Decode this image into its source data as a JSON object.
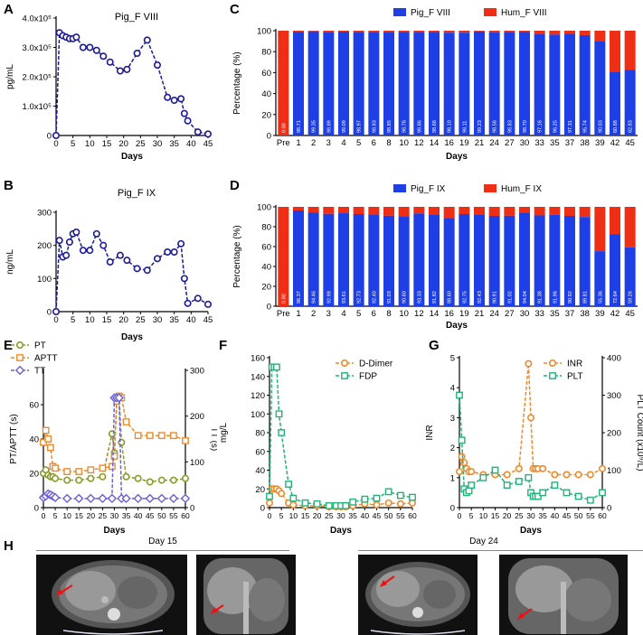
{
  "colors": {
    "blue": "#1f3fe6",
    "red": "#ef2e16",
    "navy": "#1a1a9a",
    "olive": "#8a9a2a",
    "orange": "#ee8a2a",
    "teal": "#22b27a",
    "purple": "#6a5fd6",
    "arrow": "#e11"
  },
  "chart_data": [
    {
      "id": "A",
      "panel_label": "A",
      "type": "line",
      "title": "Pig_F VIII",
      "xlabel": "Days",
      "ylabel": "pg/mL",
      "xlim": [
        0,
        45
      ],
      "ylim": [
        0,
        400000
      ],
      "xticks": [
        0,
        5,
        10,
        15,
        20,
        25,
        30,
        35,
        40,
        45
      ],
      "yticks": [
        {
          "v": 0,
          "t": "0"
        },
        {
          "v": 100000,
          "t": "1.0x10⁵"
        },
        {
          "v": 200000,
          "t": "2.0x10⁵"
        },
        {
          "v": 300000,
          "t": "3.0x10⁵"
        },
        {
          "v": 400000,
          "t": "4.0x10⁵"
        }
      ],
      "series": [
        {
          "name": "Pig_F VIII",
          "color": "#1a1a9a",
          "marker": "circle",
          "x": [
            0,
            1,
            2,
            3,
            4,
            5,
            6,
            8,
            10,
            12,
            14,
            16,
            19,
            21,
            24,
            27,
            30,
            33,
            35,
            37,
            38,
            39,
            42,
            45
          ],
          "y": [
            0,
            350000,
            340000,
            335000,
            330000,
            330000,
            335000,
            300000,
            300000,
            290000,
            270000,
            250000,
            220000,
            225000,
            280000,
            325000,
            240000,
            130000,
            120000,
            125000,
            75000,
            50000,
            12000,
            5000
          ]
        }
      ]
    },
    {
      "id": "B",
      "panel_label": "B",
      "type": "line",
      "title": "Pig_F IX",
      "xlabel": "Days",
      "ylabel": "ng/mL",
      "xlim": [
        0,
        45
      ],
      "ylim": [
        0,
        300
      ],
      "xticks": [
        0,
        5,
        10,
        15,
        20,
        25,
        30,
        35,
        40,
        45
      ],
      "yticks": [
        {
          "v": 0,
          "t": "0"
        },
        {
          "v": 100,
          "t": "100"
        },
        {
          "v": 200,
          "t": "200"
        },
        {
          "v": 300,
          "t": "300"
        }
      ],
      "series": [
        {
          "name": "Pig_F IX",
          "color": "#1a1a9a",
          "marker": "circle",
          "x": [
            0,
            1,
            2,
            3,
            4,
            5,
            6,
            8,
            10,
            12,
            14,
            16,
            19,
            21,
            24,
            27,
            30,
            33,
            35,
            37,
            38,
            39,
            42,
            45
          ],
          "y": [
            0,
            215,
            165,
            170,
            210,
            235,
            240,
            185,
            185,
            235,
            200,
            150,
            170,
            155,
            130,
            125,
            160,
            180,
            180,
            205,
            100,
            25,
            40,
            22
          ]
        }
      ]
    },
    {
      "id": "C",
      "panel_label": "C",
      "type": "bar",
      "title": "",
      "xlabel": "Days",
      "ylabel": "Percentage (%)",
      "ylim": [
        0,
        100
      ],
      "yticks": [
        {
          "v": 0,
          "t": "0"
        },
        {
          "v": 20,
          "t": "20"
        },
        {
          "v": 40,
          "t": "40"
        },
        {
          "v": 60,
          "t": "60"
        },
        {
          "v": 80,
          "t": "80"
        },
        {
          "v": 100,
          "t": "100"
        }
      ],
      "legend": [
        "Pig_F VIII",
        "Hum_F VIII"
      ],
      "categories": [
        "Pre",
        "1",
        "2",
        "3",
        "4",
        "5",
        "6",
        "8",
        "10",
        "12",
        "14",
        "16",
        "19",
        "21",
        "24",
        "27",
        "30",
        "33",
        "35",
        "37",
        "38",
        "39",
        "42",
        "45"
      ],
      "values": [
        0,
        98.71,
        99.35,
        98.89,
        99.09,
        98.97,
        98.83,
        98.85,
        98.76,
        98.86,
        98.68,
        98.1,
        98.11,
        99.23,
        98.56,
        98.83,
        98.7,
        97.16,
        96.25,
        97.31,
        95.74,
        90.03,
        60.88,
        62.83
      ],
      "labels": [
        "0.00",
        "98.71",
        "99.35",
        "98.89",
        "99.09",
        "98.97",
        "98.83",
        "98.85",
        "98.76",
        "98.86",
        "98.68",
        "98.10",
        "98.11",
        "99.23",
        "98.56",
        "98.83",
        "98.70",
        "97.16",
        "96.25",
        "97.31",
        "95.74",
        "90.03",
        "60.88",
        "62.83"
      ]
    },
    {
      "id": "D",
      "panel_label": "D",
      "type": "bar",
      "title": "",
      "xlabel": "Days",
      "ylabel": "Percentage (%)",
      "ylim": [
        0,
        100
      ],
      "yticks": [
        {
          "v": 0,
          "t": "0"
        },
        {
          "v": 20,
          "t": "20"
        },
        {
          "v": 40,
          "t": "40"
        },
        {
          "v": 60,
          "t": "60"
        },
        {
          "v": 80,
          "t": "80"
        },
        {
          "v": 100,
          "t": "100"
        }
      ],
      "legend": [
        "Pig_F IX",
        "Hum_F IX"
      ],
      "categories": [
        "Pre",
        "1",
        "2",
        "3",
        "4",
        "5",
        "6",
        "8",
        "10",
        "12",
        "14",
        "16",
        "19",
        "21",
        "24",
        "27",
        "30",
        "33",
        "35",
        "37",
        "38",
        "39",
        "42",
        "45"
      ],
      "values": [
        0,
        96.37,
        94.46,
        92.98,
        93.61,
        92.73,
        92.4,
        91.03,
        90.6,
        93.33,
        91.82,
        88.6,
        92.75,
        92.43,
        90.91,
        91.02,
        94.04,
        91.38,
        91.96,
        90.92,
        89.81,
        55.36,
        72.64,
        59.26
      ],
      "labels": [
        "0.00",
        "96.37",
        "94.46",
        "92.98",
        "93.61",
        "92.73",
        "92.40",
        "91.03",
        "90.60",
        "93.33",
        "91.82",
        "88.60",
        "92.75",
        "92.43",
        "90.91",
        "91.02",
        "94.04",
        "91.38",
        "91.96",
        "90.92",
        "89.81",
        "55.36",
        "72.64",
        "59.26"
      ]
    },
    {
      "id": "E",
      "panel_label": "E",
      "type": "line",
      "title": "",
      "xlabel": "Days",
      "ylabel": "PT/APTT (s)",
      "ylabel_right": "TT (s)",
      "xlim": [
        0,
        60
      ],
      "ylim": [
        0,
        80
      ],
      "ylim_right": [
        0,
        300
      ],
      "xticks": [
        0,
        5,
        10,
        15,
        20,
        25,
        30,
        35,
        40,
        45,
        50,
        55,
        60
      ],
      "yticks": [
        {
          "v": 0,
          "t": "0"
        },
        {
          "v": 20,
          "t": "20"
        },
        {
          "v": 40,
          "t": "40"
        },
        {
          "v": 60,
          "t": "60"
        }
      ],
      "yticks_right": [
        {
          "v": 0,
          "t": "0"
        },
        {
          "v": 100,
          "t": "100"
        },
        {
          "v": 200,
          "t": "200"
        },
        {
          "v": 300,
          "t": "300"
        }
      ],
      "series": [
        {
          "name": "PT",
          "color": "#8a9a2a",
          "marker": "circle",
          "axis": "left",
          "x": [
            0,
            1,
            2,
            3,
            4,
            5,
            10,
            15,
            20,
            25,
            29,
            30,
            31,
            32,
            33,
            35,
            40,
            45,
            50,
            55,
            60
          ],
          "y": [
            20,
            22,
            19,
            18,
            18,
            17,
            16,
            16,
            17,
            18,
            43,
            32,
            64,
            64,
            38,
            18,
            17,
            15,
            16,
            16,
            17
          ]
        },
        {
          "name": "APTT",
          "color": "#ee8a2a",
          "marker": "square",
          "axis": "left",
          "x": [
            0,
            1,
            2,
            3,
            4,
            5,
            10,
            15,
            20,
            25,
            29,
            30,
            31,
            32,
            33,
            35,
            40,
            45,
            50,
            55,
            60
          ],
          "y": [
            38,
            45,
            40,
            35,
            24,
            23,
            21,
            21,
            22,
            23,
            24,
            30,
            62,
            65,
            64,
            50,
            42,
            42,
            42,
            42,
            39
          ]
        },
        {
          "name": "TT",
          "color": "#6a5fd6",
          "marker": "diamond",
          "axis": "right",
          "x": [
            0,
            1,
            2,
            3,
            4,
            5,
            10,
            15,
            20,
            25,
            29,
            30,
            31,
            32,
            33,
            35,
            40,
            45,
            50,
            55,
            60
          ],
          "y": [
            22,
            25,
            30,
            28,
            25,
            22,
            20,
            20,
            20,
            20,
            20,
            240,
            240,
            240,
            20,
            20,
            20,
            20,
            20,
            20,
            20
          ]
        }
      ]
    },
    {
      "id": "F",
      "panel_label": "F",
      "type": "line",
      "title": "",
      "xlabel": "Days",
      "ylabel": "mg/L",
      "xlim": [
        0,
        60
      ],
      "ylim": [
        0,
        160
      ],
      "xticks": [
        0,
        5,
        10,
        15,
        20,
        25,
        30,
        35,
        40,
        45,
        50,
        55,
        60
      ],
      "yticks": [
        {
          "v": 0,
          "t": "0"
        },
        {
          "v": 20,
          "t": "20"
        },
        {
          "v": 40,
          "t": "40"
        },
        {
          "v": 60,
          "t": "60"
        },
        {
          "v": 80,
          "t": "80"
        },
        {
          "v": 100,
          "t": "100"
        },
        {
          "v": 120,
          "t": "120"
        },
        {
          "v": 140,
          "t": "140"
        },
        {
          "v": 160,
          "t": "160"
        }
      ],
      "series": [
        {
          "name": "D-Dimer",
          "color": "#ee8a2a",
          "marker": "circle",
          "x": [
            0,
            1,
            2,
            3,
            4,
            5,
            8,
            10,
            15,
            20,
            25,
            28,
            30,
            32,
            35,
            40,
            45,
            50,
            55,
            60
          ],
          "y": [
            5,
            20,
            20,
            20,
            18,
            15,
            5,
            3,
            2,
            2,
            1,
            1,
            1,
            1,
            2,
            4,
            3,
            5,
            4,
            5
          ]
        },
        {
          "name": "FDP",
          "color": "#22b27a",
          "marker": "square",
          "x": [
            0,
            1,
            2,
            3,
            4,
            5,
            8,
            10,
            15,
            20,
            25,
            28,
            30,
            32,
            35,
            40,
            45,
            50,
            55,
            60
          ],
          "y": [
            12,
            150,
            150,
            150,
            100,
            80,
            25,
            10,
            5,
            4,
            2,
            2,
            2,
            2,
            6,
            9,
            10,
            17,
            13,
            11
          ]
        }
      ]
    },
    {
      "id": "G",
      "panel_label": "G",
      "type": "line",
      "title": "",
      "xlabel": "Days",
      "ylabel": "INR",
      "ylabel_right": "PLT Count (x10⁹/L)",
      "xlim": [
        0,
        60
      ],
      "ylim": [
        0,
        5
      ],
      "ylim_right": [
        0,
        400
      ],
      "xticks": [
        0,
        5,
        10,
        15,
        20,
        25,
        30,
        35,
        40,
        45,
        50,
        55,
        60
      ],
      "yticks": [
        {
          "v": 0,
          "t": "0"
        },
        {
          "v": 1,
          "t": "1"
        },
        {
          "v": 2,
          "t": "2"
        },
        {
          "v": 3,
          "t": "3"
        },
        {
          "v": 4,
          "t": "4"
        },
        {
          "v": 5,
          "t": "5"
        }
      ],
      "yticks_right": [
        {
          "v": 0,
          "t": "0"
        },
        {
          "v": 100,
          "t": "100"
        },
        {
          "v": 200,
          "t": "200"
        },
        {
          "v": 300,
          "t": "300"
        },
        {
          "v": 400,
          "t": "400"
        }
      ],
      "series": [
        {
          "name": "INR",
          "color": "#ee8a2a",
          "marker": "circle",
          "axis": "left",
          "x": [
            0,
            1,
            2,
            3,
            4,
            5,
            10,
            15,
            20,
            25,
            29,
            30,
            31,
            32,
            33,
            35,
            40,
            45,
            50,
            55,
            60
          ],
          "y": [
            1.2,
            1.7,
            1.5,
            1.3,
            1.2,
            1.2,
            1.1,
            1.1,
            1.1,
            1.3,
            4.8,
            3.0,
            1.3,
            1.3,
            1.3,
            1.3,
            1.1,
            1.1,
            1.1,
            1.1,
            1.3
          ]
        },
        {
          "name": "PLT",
          "color": "#22b27a",
          "marker": "square",
          "axis": "right",
          "x": [
            0,
            1,
            2,
            3,
            4,
            5,
            10,
            15,
            20,
            25,
            29,
            30,
            31,
            32,
            33,
            35,
            40,
            45,
            50,
            55,
            60
          ],
          "y": [
            300,
            180,
            50,
            40,
            45,
            60,
            80,
            100,
            60,
            70,
            80,
            40,
            30,
            30,
            30,
            40,
            60,
            40,
            30,
            20,
            40
          ]
        }
      ]
    }
  ],
  "panel_h": {
    "label": "H",
    "left_title": "Day 15",
    "right_title": "Day 24"
  }
}
